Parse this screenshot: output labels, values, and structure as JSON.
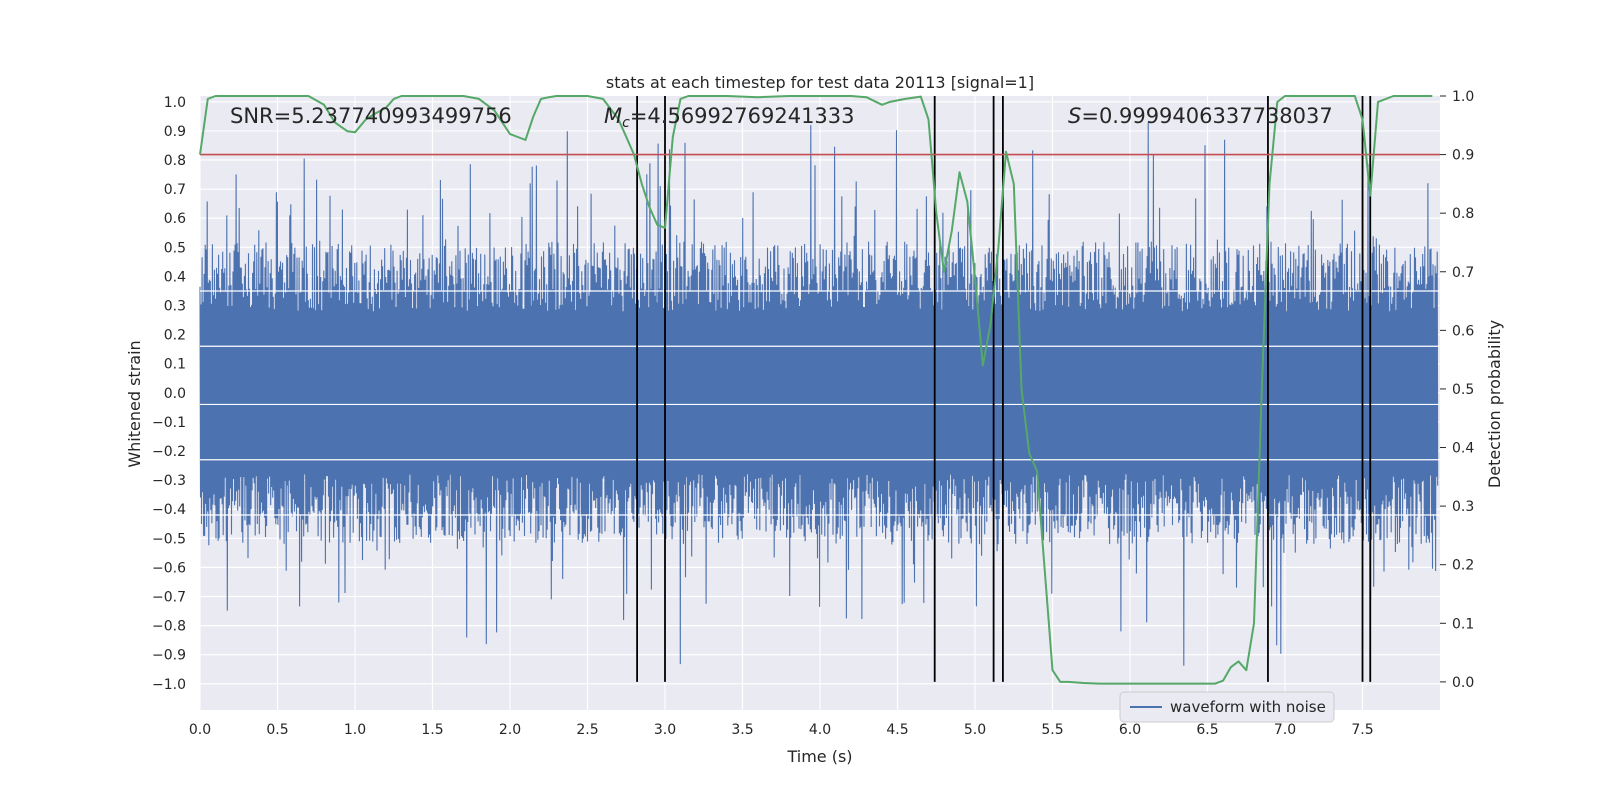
{
  "chart_data": {
    "type": "line",
    "title": "stats at each timestep for test data 20113 [signal=1]",
    "xlabel": "Time (s)",
    "ylabel": "Whitened strain",
    "y2label": "Detection probability",
    "xlim": [
      0,
      8
    ],
    "ylim": [
      -1.09,
      1.02
    ],
    "y2lim": [
      -0.048,
      1.0
    ],
    "xticks": [
      "0.0",
      "0.5",
      "1.0",
      "1.5",
      "2.0",
      "2.5",
      "3.0",
      "3.5",
      "4.0",
      "4.5",
      "5.0",
      "5.5",
      "6.0",
      "6.5",
      "7.0",
      "7.5"
    ],
    "yticks": [
      "−1.0",
      "−0.9",
      "−0.8",
      "−0.7",
      "−0.6",
      "−0.5",
      "−0.4",
      "−0.3",
      "−0.2",
      "−0.1",
      "0.0",
      "0.1",
      "0.2",
      "0.3",
      "0.4",
      "0.5",
      "0.6",
      "0.7",
      "0.8",
      "0.9",
      "1.0"
    ],
    "y2ticks": [
      "0.0",
      "0.1",
      "0.2",
      "0.3",
      "0.4",
      "0.5",
      "0.6",
      "0.7",
      "0.8",
      "0.9",
      "1.0"
    ],
    "grid": true,
    "legend_position": "lower-right",
    "annotations": {
      "snr": "SNR=5.237740993499756",
      "mc_symbol": "M",
      "mc_sub": "c",
      "mc_value": "=4.56992769241333",
      "s_symbol": "S",
      "s_value": "=0.9999406337738037"
    },
    "waveform": {
      "name": "waveform with noise",
      "color": "#4c72b0",
      "samples": 2400,
      "core_amplitude": 0.42,
      "spike_max": 0.94,
      "white_lines_y": [
        0.35,
        0.16,
        -0.04,
        -0.23,
        -0.42
      ]
    },
    "probability": {
      "color": "#55a868",
      "x": [
        0.0,
        0.05,
        0.1,
        0.2,
        0.3,
        0.5,
        0.6,
        0.7,
        0.8,
        0.87,
        0.95,
        1.0,
        1.07,
        1.13,
        1.2,
        1.25,
        1.3,
        1.35,
        1.4,
        1.5,
        1.6,
        1.7,
        1.8,
        1.9,
        1.95,
        2.0,
        2.05,
        2.1,
        2.15,
        2.2,
        2.25,
        2.3,
        2.35,
        2.5,
        2.6,
        2.7,
        2.75,
        2.8,
        2.82,
        2.85,
        2.9,
        2.95,
        3.0,
        3.05,
        3.1,
        3.15,
        3.2,
        3.4,
        3.6,
        3.8,
        4.0,
        4.2,
        4.3,
        4.4,
        4.45,
        4.55,
        4.65,
        4.7,
        4.75,
        4.8,
        4.85,
        4.9,
        4.95,
        5.0,
        5.05,
        5.1,
        5.15,
        5.2,
        5.25,
        5.3,
        5.35,
        5.4,
        5.5,
        5.55,
        5.6,
        5.7,
        5.8,
        6.0,
        6.2,
        6.4,
        6.55,
        6.6,
        6.65,
        6.7,
        6.75,
        6.8,
        6.85,
        6.9,
        6.95,
        7.0,
        7.1,
        7.2,
        7.3,
        7.45,
        7.5,
        7.55,
        7.6,
        7.7,
        7.8,
        7.95
      ],
      "y": [
        0.9,
        0.995,
        1.0,
        1.0,
        1.0,
        1.0,
        1.0,
        1.0,
        0.985,
        0.955,
        0.94,
        0.938,
        0.96,
        0.97,
        0.98,
        0.995,
        1.0,
        1.0,
        1.0,
        1.0,
        1.0,
        1.0,
        0.995,
        0.975,
        0.955,
        0.935,
        0.93,
        0.925,
        0.965,
        0.995,
        0.998,
        1.0,
        1.0,
        1.0,
        0.995,
        0.96,
        0.93,
        0.9,
        0.88,
        0.85,
        0.81,
        0.78,
        0.775,
        0.93,
        0.995,
        1.0,
        1.0,
        1.0,
        0.998,
        1.0,
        1.0,
        1.0,
        0.998,
        0.985,
        0.99,
        0.995,
        0.999,
        0.96,
        0.8,
        0.7,
        0.77,
        0.87,
        0.82,
        0.69,
        0.54,
        0.61,
        0.74,
        0.905,
        0.85,
        0.5,
        0.39,
        0.36,
        0.02,
        0.0,
        0.0,
        -0.002,
        -0.003,
        -0.003,
        -0.003,
        -0.003,
        -0.003,
        0.002,
        0.025,
        0.035,
        0.02,
        0.1,
        0.5,
        0.85,
        0.99,
        1.0,
        1.0,
        1.0,
        1.0,
        1.0,
        0.96,
        0.83,
        0.99,
        1.0,
        1.0,
        1.0
      ]
    },
    "threshold": {
      "y2": 0.9,
      "color": "#c44e52"
    },
    "vlines": [
      2.82,
      3.0,
      4.74,
      5.12,
      5.18,
      6.89,
      7.5,
      7.55
    ]
  }
}
